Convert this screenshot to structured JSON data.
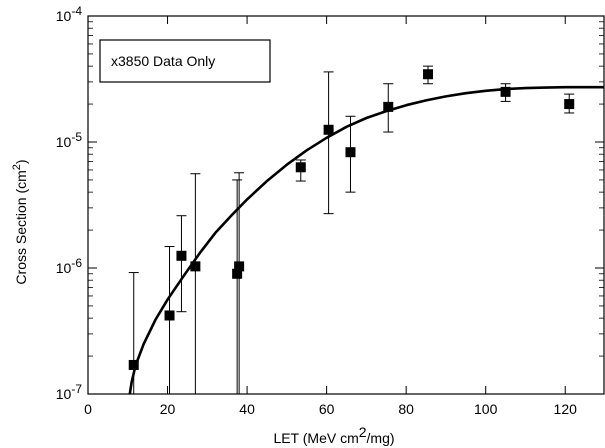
{
  "chart_data": {
    "type": "scatter",
    "xlabel": "LET (MeV cm2/mg)",
    "ylabel": "Cross Section (cm2)",
    "legend": "x3850 Data Only",
    "legend_position": "top-left",
    "xlim": [
      0,
      130
    ],
    "ylim": [
      1e-07,
      0.0001
    ],
    "y_scale": "log",
    "x_ticks": [
      0,
      20,
      40,
      60,
      80,
      100,
      120
    ],
    "y_ticks": [
      {
        "value": 1e-07,
        "base": "10",
        "exp": "-7"
      },
      {
        "value": 1e-06,
        "base": "10",
        "exp": "-6"
      },
      {
        "value": 1e-05,
        "base": "10",
        "exp": "-5"
      },
      {
        "value": 0.0001,
        "base": "10",
        "exp": "-4"
      }
    ],
    "grid": false,
    "series": [
      {
        "marker": "square",
        "x": [
          11.5,
          20.5,
          23.5,
          27,
          37.5,
          38,
          53.5,
          60.5,
          66,
          75.5,
          85.5,
          105,
          121
        ],
        "y": [
          1.7e-07,
          4.2e-07,
          1.25e-06,
          1.03e-06,
          9e-07,
          1.03e-06,
          6.3e-06,
          1.25e-05,
          8.3e-06,
          1.9e-05,
          3.45e-05,
          2.5e-05,
          2e-05
        ],
        "y_low": [
          1e-07,
          1e-07,
          4.5e-07,
          1e-07,
          1e-07,
          1e-07,
          4.9e-06,
          2.7e-06,
          4e-06,
          1.2e-05,
          2.9e-05,
          2.1e-05,
          1.7e-05
        ],
        "y_high": [
          9.2e-07,
          1.48e-06,
          2.6e-06,
          5.6e-06,
          5e-06,
          5.7e-06,
          7.2e-06,
          3.6e-05,
          1.6e-05,
          2.9e-05,
          4e-05,
          2.9e-05,
          2.4e-05
        ]
      },
      {
        "marker": "none",
        "line": "solid",
        "x": [
          10.5,
          11,
          12,
          14,
          17,
          20,
          24,
          28,
          32,
          36,
          40,
          45,
          50,
          55,
          60,
          65,
          70,
          75,
          80,
          85,
          90,
          95,
          100,
          105,
          110,
          115,
          120,
          125,
          130
        ],
        "y": [
          1e-07,
          1.25e-07,
          1.7e-07,
          2.5e-07,
          3.9e-07,
          5.6e-07,
          8.6e-07,
          1.3e-06,
          1.9e-06,
          2.6e-06,
          3.5e-06,
          4.9e-06,
          6.6e-06,
          8.6e-06,
          1.08e-05,
          1.32e-05,
          1.55e-05,
          1.76e-05,
          1.96e-05,
          2.14e-05,
          2.3e-05,
          2.44e-05,
          2.55e-05,
          2.63e-05,
          2.68e-05,
          2.7e-05,
          2.72e-05,
          2.72e-05,
          2.72e-05
        ]
      }
    ]
  }
}
